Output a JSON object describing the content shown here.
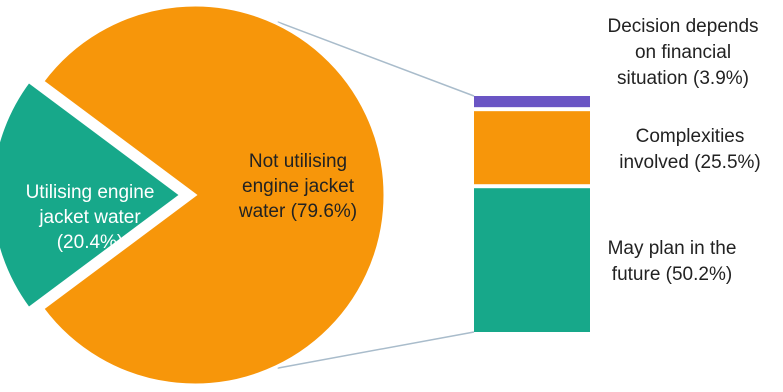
{
  "chart_data": {
    "type": "pie",
    "subtype": "bar-of-pie",
    "pie": {
      "slices": [
        {
          "label": [
            "Not utilising",
            "engine jacket",
            "water (79.6%)"
          ],
          "value": 79.6,
          "color": "#F7960A"
        },
        {
          "label": [
            "Utilising engine",
            "jacket water",
            "(20.4%)"
          ],
          "value": 20.4,
          "color": "#17A88A"
        }
      ]
    },
    "bar": {
      "segments": [
        {
          "label": [
            "May plan in the",
            "future (50.2%)"
          ],
          "value": 50.2,
          "color": "#17A88A"
        },
        {
          "label": [
            "Complexities",
            "involved (25.5%)"
          ],
          "value": 25.5,
          "color": "#F7960A"
        },
        {
          "label": [
            "Decision depends",
            "on financial",
            "situation (3.9%)"
          ],
          "value": 3.9,
          "color": "#6A55C4"
        }
      ]
    },
    "connector_color": "#A9BCCB"
  }
}
